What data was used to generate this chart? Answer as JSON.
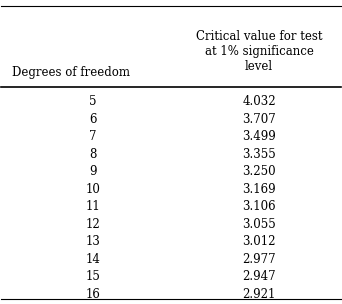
{
  "col1_header": "Degrees of freedom",
  "col2_header": "Critical value for test\nat 1% significance\nlevel",
  "degrees_of_freedom": [
    5,
    6,
    7,
    8,
    9,
    10,
    11,
    12,
    13,
    14,
    15,
    16
  ],
  "critical_values": [
    4.032,
    3.707,
    3.499,
    3.355,
    3.25,
    3.169,
    3.106,
    3.055,
    3.012,
    2.977,
    2.947,
    2.921
  ],
  "background_color": "#ffffff",
  "text_color": "#000000",
  "font_size": 8.5,
  "header_font_size": 8.5
}
